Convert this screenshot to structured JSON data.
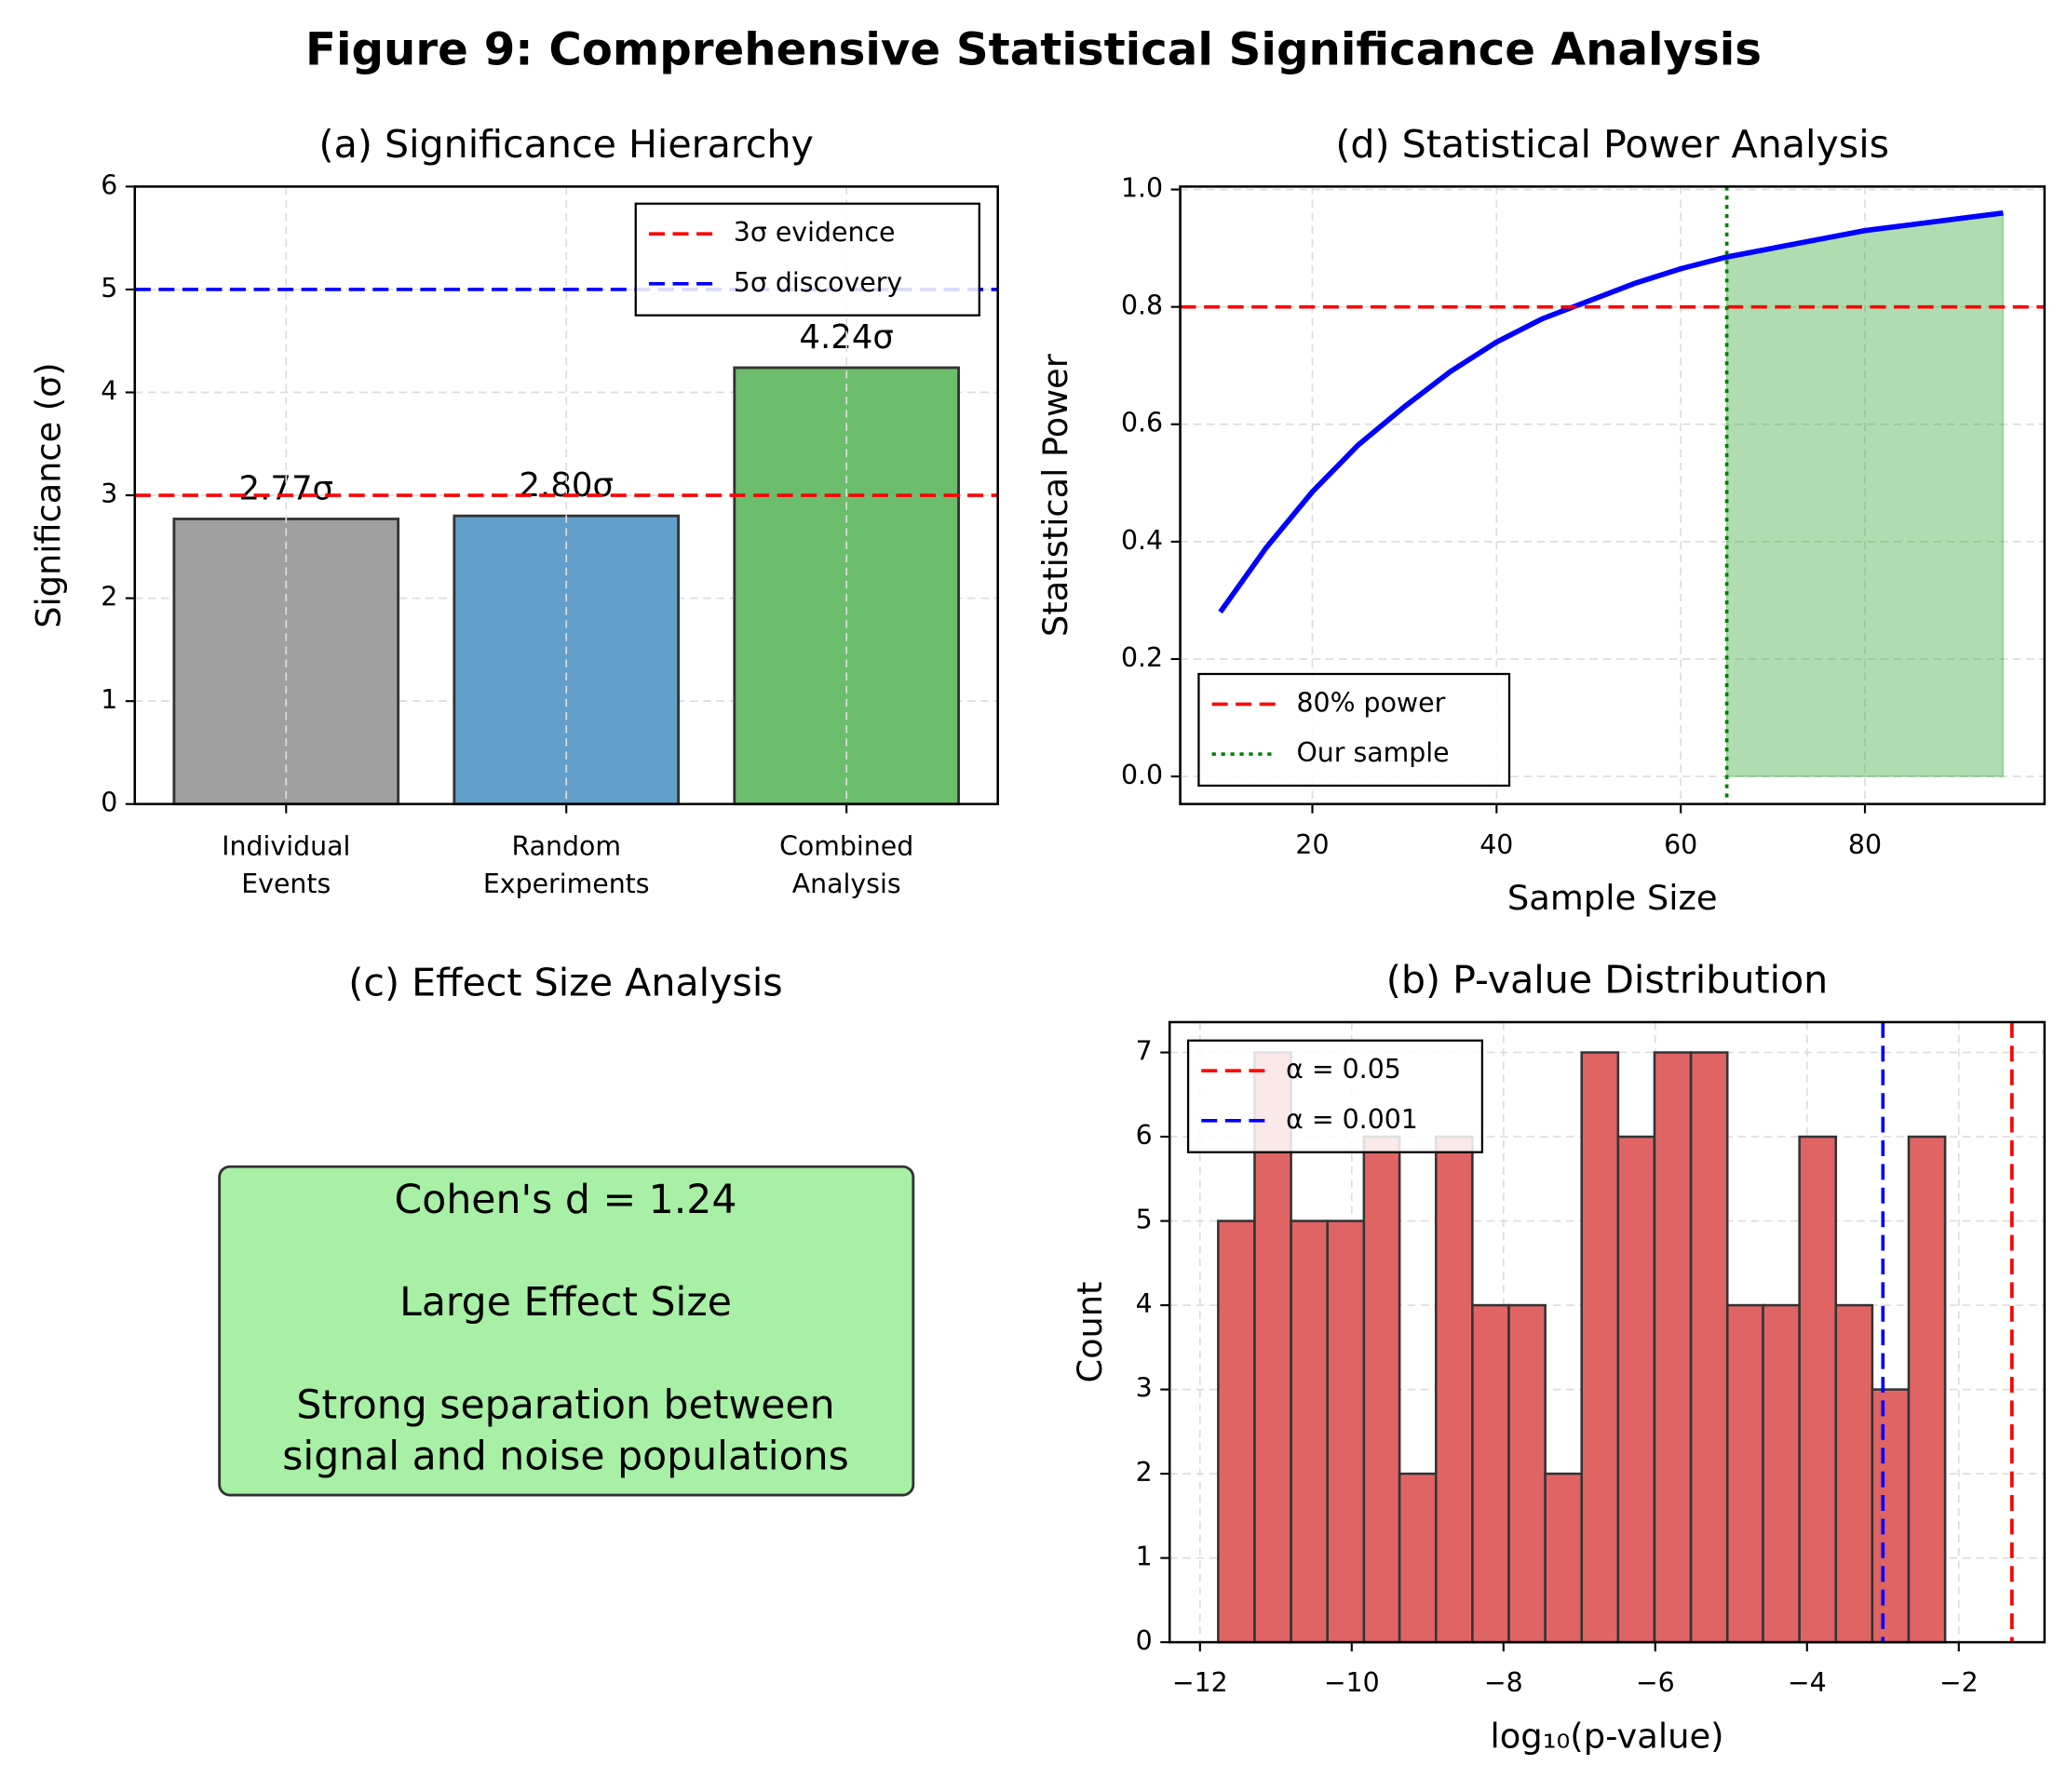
{
  "title": "Figure 9: Comprehensive Statistical Significance Analysis",
  "chart_data": [
    {
      "type": "bar",
      "title": "(a) Significance Hierarchy",
      "ylabel": "Significance (σ)",
      "categories": [
        "Individual\nEvents",
        "Random\nExperiments",
        "Combined\nAnalysis"
      ],
      "values": [
        2.77,
        2.8,
        4.24
      ],
      "value_labels": [
        "2.77σ",
        "2.80σ",
        "4.24σ"
      ],
      "colors": [
        "#a0a0a0",
        "#629fca",
        "#6cbd6c"
      ],
      "ylim": [
        0,
        6
      ],
      "yticks": [
        0,
        1,
        2,
        3,
        4,
        5,
        6
      ],
      "grid": true,
      "legend": "upper right",
      "reference_lines": [
        {
          "name": "3σ evidence",
          "value": 3,
          "orientation": "h",
          "color": "red",
          "style": "dashed"
        },
        {
          "name": "5σ discovery",
          "value": 5,
          "orientation": "h",
          "color": "blue",
          "style": "dashed"
        }
      ]
    },
    {
      "type": "line",
      "title": "(d) Statistical Power Analysis",
      "xlabel": "Sample Size",
      "ylabel": "Statistical Power",
      "x": [
        10,
        15,
        20,
        25,
        30,
        35,
        40,
        45,
        50,
        55,
        60,
        65,
        70,
        75,
        80,
        85,
        90,
        95
      ],
      "values": [
        0.28,
        0.39,
        0.485,
        0.565,
        0.63,
        0.69,
        0.74,
        0.78,
        0.81,
        0.84,
        0.865,
        0.885,
        0.9,
        0.915,
        0.93,
        0.94,
        0.95,
        0.96
      ],
      "color": "blue",
      "shade_color": "#2ca02c",
      "xlim": [
        5.65,
        99.5
      ],
      "ylim": [
        -0.047,
        1.005
      ],
      "xticks": [
        20,
        40,
        60,
        80
      ],
      "yticks": [
        {
          "value": 0,
          "label": "0.0"
        },
        0.2,
        0.4,
        0.6,
        0.8,
        {
          "value": 1,
          "label": "1.0"
        }
      ],
      "grid": true,
      "legend": "lower left",
      "reference_lines": [
        {
          "name": "80% power",
          "value": 0.8,
          "orientation": "h",
          "color": "red",
          "style": "dashed"
        },
        {
          "name": "Our sample",
          "value": 65,
          "orientation": "v",
          "color": "green",
          "style": "dotted"
        }
      ]
    },
    {
      "type": "text",
      "title": "(c) Effect Size Analysis",
      "text_lines": [
        "Cohen's d = 1.24",
        "Large Effect Size",
        "Strong separation between\nsignal and noise populations"
      ],
      "box_color": "#a7f0a5"
    },
    {
      "type": "histogram",
      "title": "(b) P-value Distribution",
      "xlabel": "log₁₀(p-value)",
      "ylabel": "Count",
      "bins": [
        -11.76,
        -11.28,
        -10.8,
        -10.32,
        -9.84,
        -9.37,
        -8.89,
        -8.41,
        -7.93,
        -7.45,
        -6.97,
        -6.49,
        -6.01,
        -5.53,
        -5.05,
        -4.58,
        -4.1,
        -3.62,
        -3.14,
        -2.66,
        -2.18
      ],
      "values": [
        5,
        7,
        5,
        5,
        6,
        2,
        6,
        4,
        4,
        2,
        7,
        6,
        7,
        7,
        4,
        4,
        6,
        4,
        3,
        6
      ],
      "color": "#e06464",
      "xlim": [
        -12.4,
        -0.87
      ],
      "ylim": [
        0,
        7.36
      ],
      "xticks": [
        {
          "value": -12,
          "label": "−12"
        },
        {
          "value": -10,
          "label": "−10"
        },
        {
          "value": -8,
          "label": "−8"
        },
        {
          "value": -6,
          "label": "−6"
        },
        {
          "value": -4,
          "label": "−4"
        },
        {
          "value": -2,
          "label": "−2"
        }
      ],
      "yticks": [
        0,
        1,
        2,
        3,
        4,
        5,
        6,
        7
      ],
      "grid": true,
      "legend": "upper left",
      "reference_lines": [
        {
          "name": "α = 0.05",
          "value": -1.3,
          "orientation": "v",
          "color": "red",
          "style": "dashed"
        },
        {
          "name": "α = 0.001",
          "value": -3,
          "orientation": "v",
          "color": "blue",
          "style": "dashed"
        }
      ]
    }
  ]
}
